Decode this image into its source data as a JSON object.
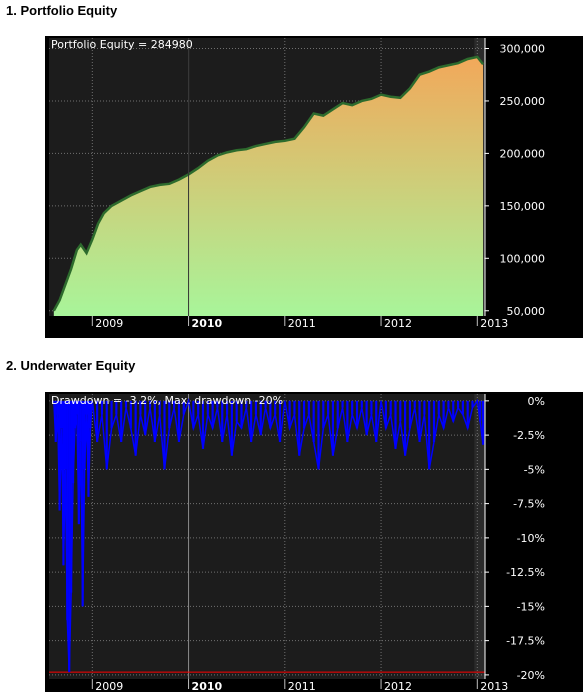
{
  "sections": {
    "equity_title": "1. Portfolio Equity",
    "underwater_title": "2. Underwater Equity"
  },
  "chart_data": [
    {
      "type": "area",
      "id": "equity",
      "title": "Portfolio Equity = 284980",
      "x_ticks": [
        "2009",
        "2010",
        "2011",
        "2012",
        "2013"
      ],
      "bold_tick": "2010",
      "y_ticks": [
        "300,000",
        "250,000",
        "200,000",
        "150,000",
        "100,000",
        "50,000"
      ],
      "y_tick_values": [
        300000,
        250000,
        200000,
        150000,
        100000,
        50000
      ],
      "ylim": [
        45000,
        310000
      ],
      "xlim": [
        2008.55,
        2013.08
      ],
      "grid": true,
      "colors": {
        "top": "#f2a85a",
        "bottom": "#a8f59a",
        "edge": "#2d6b2d"
      },
      "series": [
        {
          "x": [
            2008.6,
            2008.66,
            2008.72,
            2008.78,
            2008.84,
            2008.88,
            2008.94,
            2009.0,
            2009.06,
            2009.12,
            2009.2,
            2009.3,
            2009.4,
            2009.5,
            2009.6,
            2009.7,
            2009.8,
            2009.9,
            2010.0,
            2010.1,
            2010.2,
            2010.3,
            2010.4,
            2010.5,
            2010.6,
            2010.7,
            2010.8,
            2010.9,
            2011.0,
            2011.1,
            2011.2,
            2011.3,
            2011.4,
            2011.5,
            2011.6,
            2011.7,
            2011.8,
            2011.9,
            2012.0,
            2012.1,
            2012.2,
            2012.3,
            2012.4,
            2012.5,
            2012.6,
            2012.7,
            2012.8,
            2012.9,
            2013.0,
            2013.06
          ],
          "values": [
            50000,
            60000,
            75000,
            90000,
            108000,
            113000,
            105000,
            118000,
            133000,
            143000,
            150000,
            155000,
            160000,
            164000,
            168000,
            170000,
            171000,
            175000,
            180000,
            186000,
            193000,
            198000,
            201000,
            203000,
            204000,
            207000,
            209000,
            211000,
            212000,
            214000,
            225000,
            238000,
            236000,
            242000,
            248000,
            246000,
            250000,
            252000,
            256000,
            254000,
            253000,
            262000,
            275000,
            278000,
            282000,
            284000,
            286000,
            290000,
            292000,
            284980
          ]
        }
      ]
    },
    {
      "type": "line",
      "id": "underwater",
      "title": "Drawdown = -3.2%, Max. drawdown -20%",
      "x_ticks": [
        "2009",
        "2010",
        "2011",
        "2012",
        "2013"
      ],
      "bold_tick": "2010",
      "y_ticks": [
        "0%",
        "-2.5%",
        "-5%",
        "-7.5%",
        "-10%",
        "-12.5%",
        "-15%",
        "-17.5%",
        "-20%"
      ],
      "y_tick_values": [
        0,
        -2.5,
        -5,
        -7.5,
        -10,
        -12.5,
        -15,
        -17.5,
        -20
      ],
      "ylim": [
        -20.3,
        0.5
      ],
      "xlim": [
        2008.55,
        2013.08
      ],
      "max_drawdown": -19.8,
      "grid": true,
      "colors": {
        "line": "#0000ff",
        "maxline": "#ff0000"
      },
      "series": [
        {
          "x": [
            2008.6,
            2008.62,
            2008.64,
            2008.66,
            2008.68,
            2008.7,
            2008.72,
            2008.74,
            2008.76,
            2008.78,
            2008.8,
            2008.82,
            2008.84,
            2008.86,
            2008.88,
            2008.9,
            2008.92,
            2008.94,
            2008.96,
            2008.98,
            2009.0,
            2009.05,
            2009.1,
            2009.15,
            2009.2,
            2009.25,
            2009.3,
            2009.35,
            2009.4,
            2009.45,
            2009.5,
            2009.55,
            2009.6,
            2009.65,
            2009.7,
            2009.75,
            2009.8,
            2009.85,
            2009.9,
            2009.95,
            2010.0,
            2010.05,
            2010.1,
            2010.15,
            2010.2,
            2010.25,
            2010.3,
            2010.35,
            2010.4,
            2010.45,
            2010.5,
            2010.55,
            2010.6,
            2010.65,
            2010.7,
            2010.75,
            2010.8,
            2010.85,
            2010.9,
            2010.95,
            2011.0,
            2011.05,
            2011.1,
            2011.15,
            2011.2,
            2011.25,
            2011.3,
            2011.35,
            2011.4,
            2011.45,
            2011.5,
            2011.55,
            2011.6,
            2011.65,
            2011.7,
            2011.75,
            2011.8,
            2011.85,
            2011.9,
            2011.95,
            2012.0,
            2012.05,
            2012.1,
            2012.15,
            2012.2,
            2012.25,
            2012.3,
            2012.35,
            2012.4,
            2012.45,
            2012.5,
            2012.55,
            2012.6,
            2012.65,
            2012.7,
            2012.75,
            2012.8,
            2012.85,
            2012.9,
            2012.95,
            2013.0,
            2013.03,
            2013.06
          ],
          "values": [
            0,
            -3,
            -1,
            -8,
            -2,
            -12,
            -5,
            -16,
            -19.8,
            -14,
            -6,
            -2,
            -1,
            -9,
            -3,
            -15,
            -5,
            -1,
            -7,
            -2,
            0,
            -3,
            -1,
            -5,
            -2,
            -1,
            -3,
            -0.5,
            -2,
            -4,
            -1,
            -2.5,
            -0.5,
            -3,
            -1,
            -5,
            -2,
            -0.5,
            -3,
            -1,
            0,
            -2,
            -1,
            -3.5,
            -1,
            -2,
            -0.5,
            -3,
            -1,
            -4,
            -1.5,
            -2,
            -0.5,
            -3,
            -1,
            -2.5,
            -0.5,
            -2,
            -1,
            -3,
            0,
            -2,
            -1,
            -4,
            -2,
            -1,
            -3,
            -5,
            -2,
            -1,
            -4,
            -2,
            -0.5,
            -3,
            -1,
            -2,
            -0.5,
            -2.5,
            -1,
            -3,
            0,
            -2,
            -1,
            -3.5,
            -1.5,
            -4,
            -2,
            -0.5,
            -3,
            -1,
            -5,
            -3,
            -1,
            -2,
            -0.5,
            -1.5,
            -0.5,
            -1,
            -2,
            -0.5,
            0,
            -1.5,
            -3.2
          ]
        }
      ]
    }
  ]
}
